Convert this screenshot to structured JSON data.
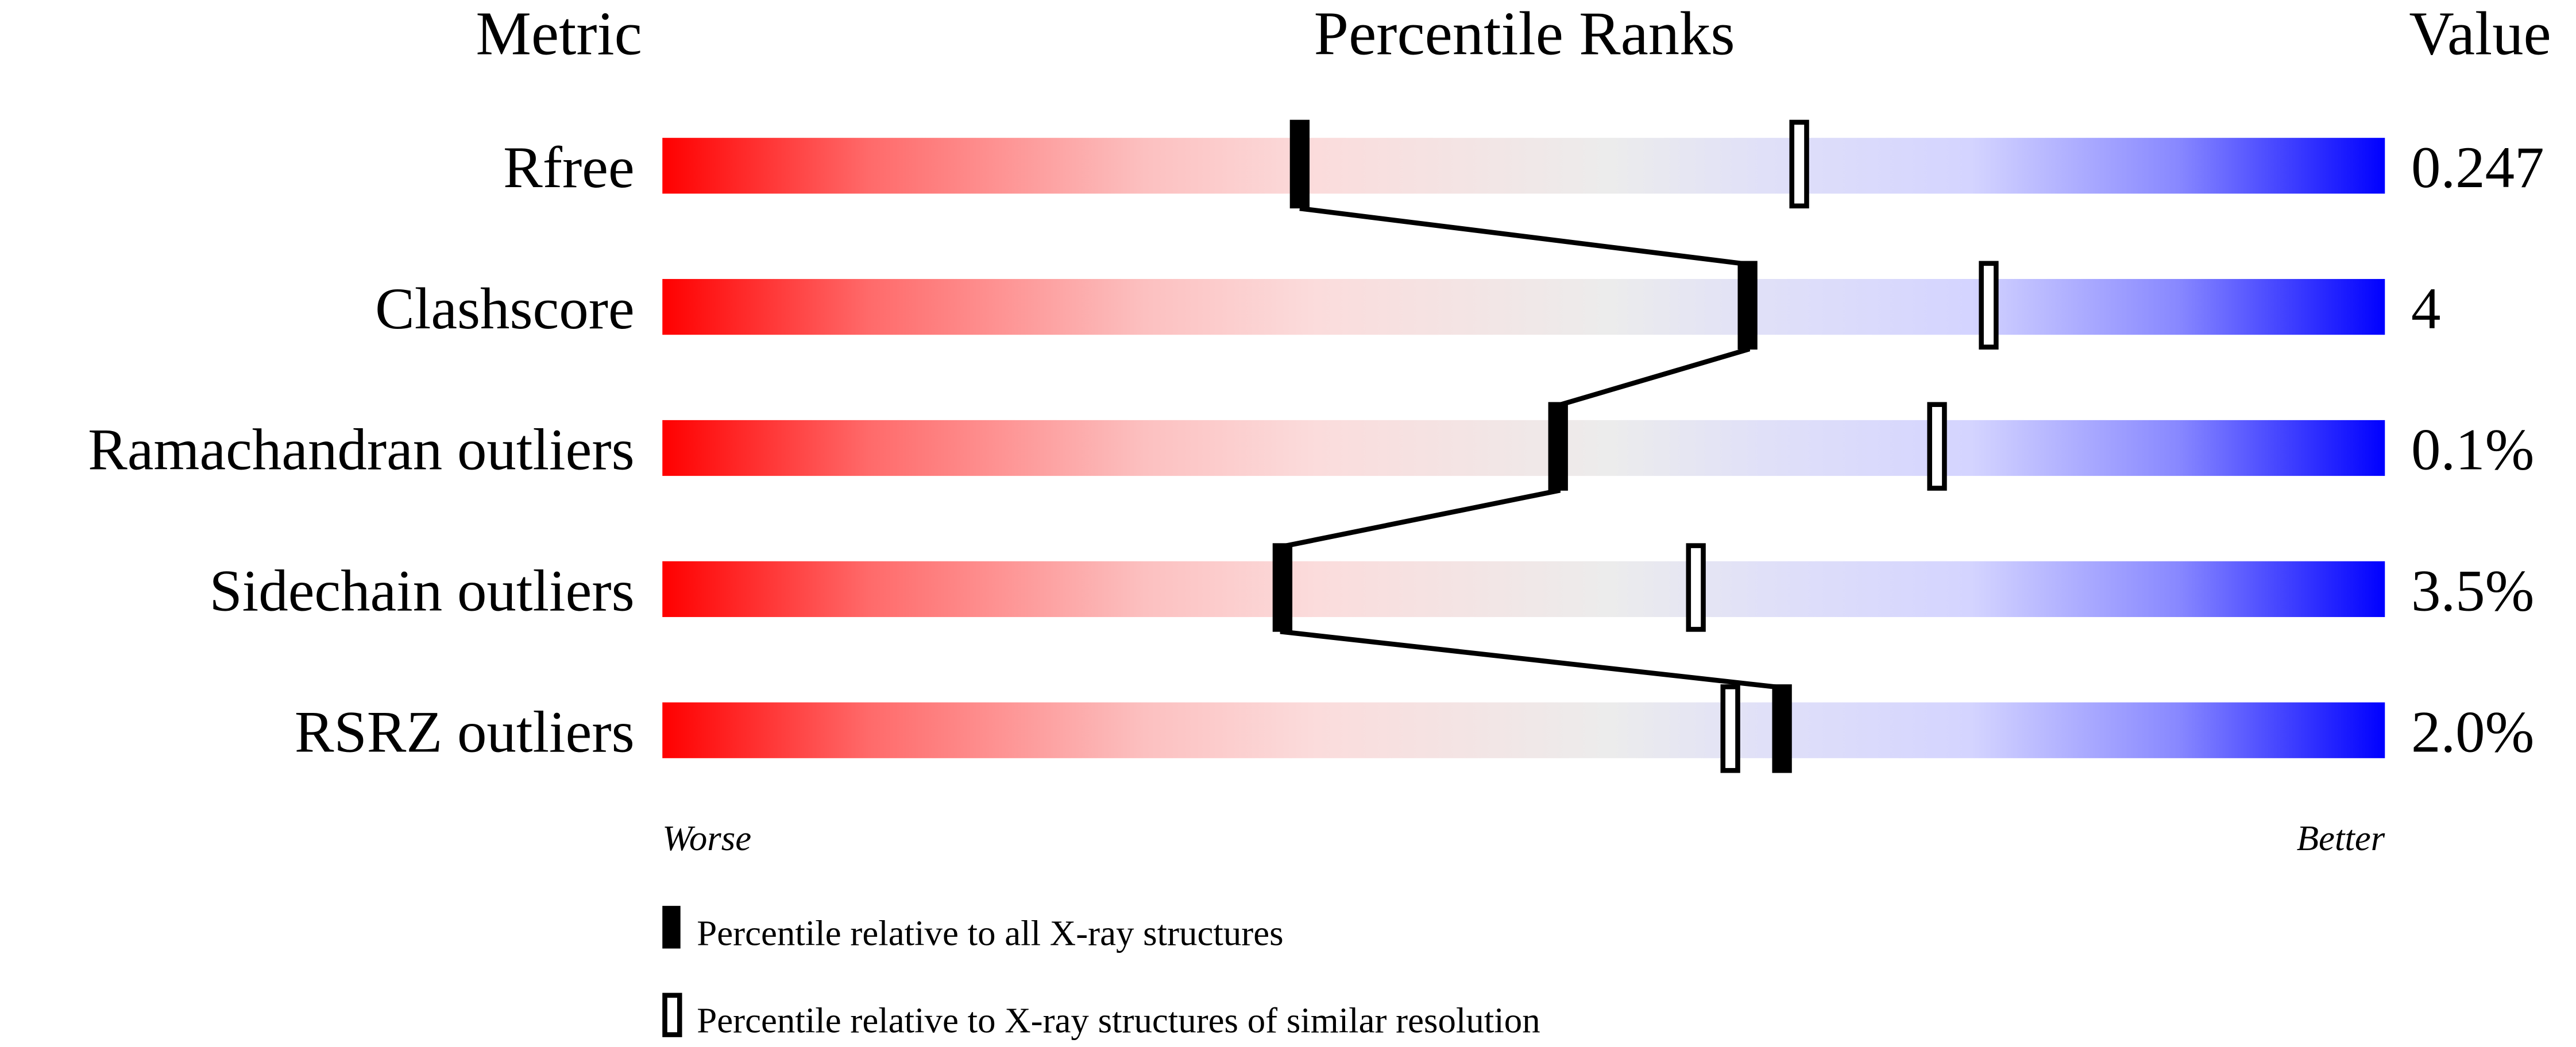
{
  "chart_data": {
    "type": "percentile-bar",
    "headers": {
      "metric": "Metric",
      "ranks": "Percentile Ranks",
      "value": "Value"
    },
    "axis": {
      "worse": "Worse",
      "better": "Better",
      "xlim": [
        0,
        100
      ]
    },
    "metrics": [
      {
        "name": "Rfree",
        "value": "0.247",
        "percentile_all": 37,
        "percentile_similar": 66
      },
      {
        "name": "Clashscore",
        "value": "4",
        "percentile_all": 63,
        "percentile_similar": 77
      },
      {
        "name": "Ramachandran outliers",
        "value": "0.1%",
        "percentile_all": 52,
        "percentile_similar": 74
      },
      {
        "name": "Sidechain outliers",
        "value": "3.5%",
        "percentile_all": 36,
        "percentile_similar": 60
      },
      {
        "name": "RSRZ outliers",
        "value": "2.0%",
        "percentile_all": 65,
        "percentile_similar": 62
      }
    ],
    "legend": [
      {
        "marker": "filled",
        "label": "Percentile relative to all X-ray structures"
      },
      {
        "marker": "open",
        "label": "Percentile relative to X-ray structures of similar resolution"
      }
    ],
    "colors": {
      "worse": "#ff0000",
      "middle": "#eeeeee",
      "better": "#0000ff"
    }
  }
}
